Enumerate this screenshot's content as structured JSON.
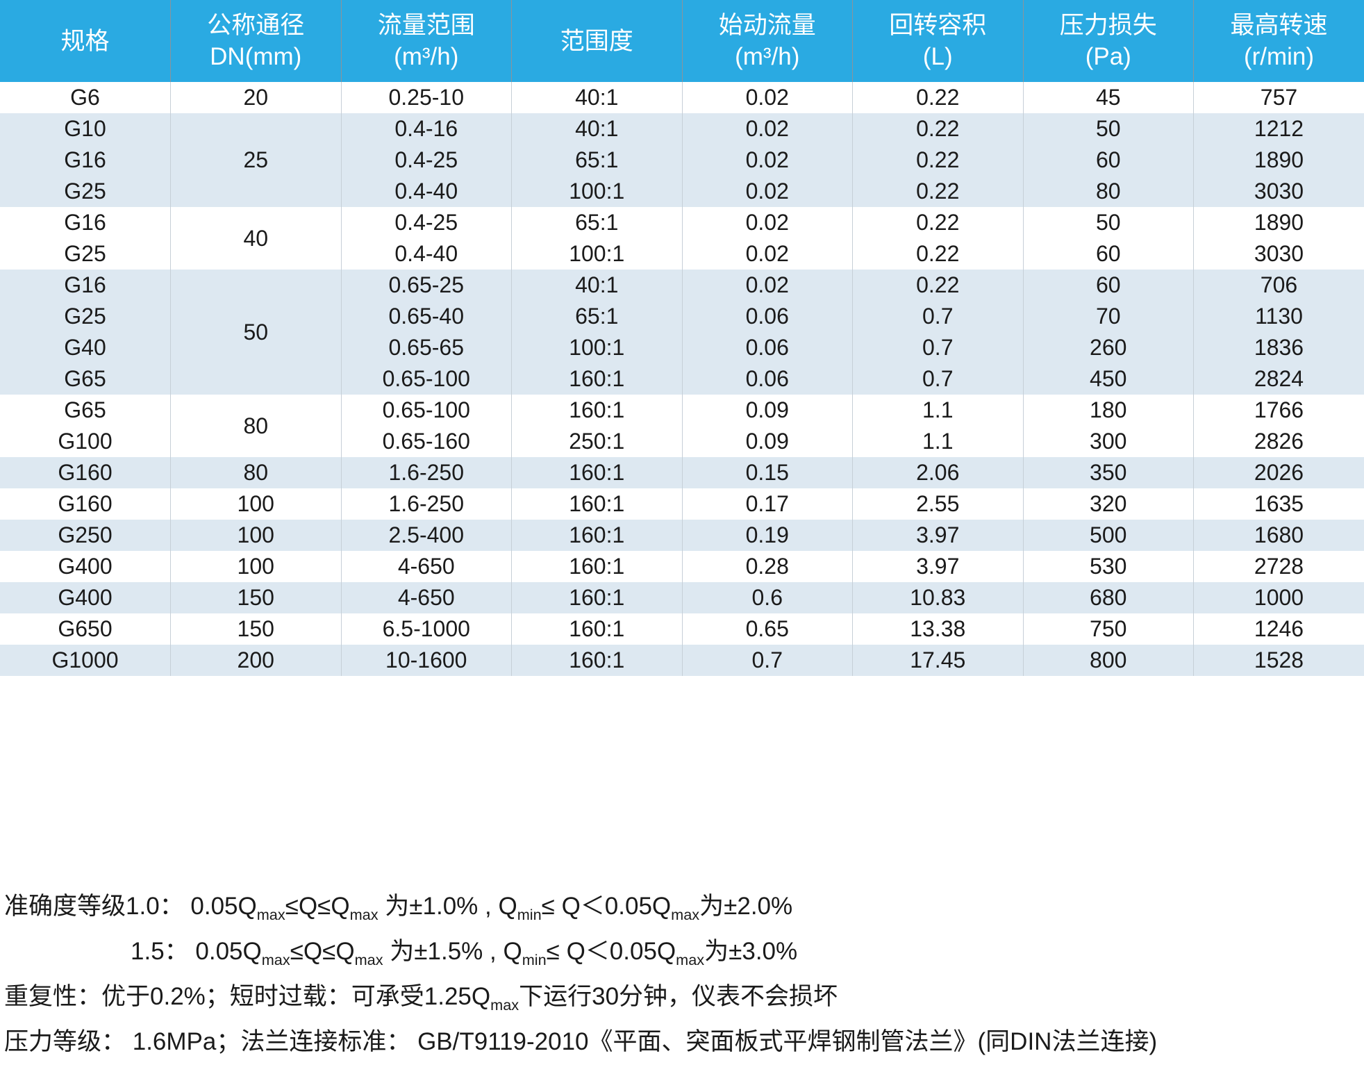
{
  "colors": {
    "header_bg": "#2aaae2",
    "header_text": "#ffffff",
    "stripe_bg": "#dde8f1",
    "body_text": "#1a1a1a"
  },
  "table": {
    "headers": [
      {
        "line1": "规格",
        "line2": ""
      },
      {
        "line1": "公称通径",
        "line2": "DN(mm)"
      },
      {
        "line1": "流量范围",
        "line2": "(m³/h)"
      },
      {
        "line1": "范围度",
        "line2": ""
      },
      {
        "line1": "始动流量",
        "line2": "(m³/h)"
      },
      {
        "line1": "回转容积",
        "line2": "(L)"
      },
      {
        "line1": "压力损失",
        "line2": "(Pa)"
      },
      {
        "line1": "最高转速",
        "line2": "(r/min)"
      }
    ],
    "groups": [
      {
        "dn": "20",
        "shade": false,
        "rows": [
          [
            "G6",
            "0.25-10",
            "40:1",
            "0.02",
            "0.22",
            "45",
            "757"
          ]
        ]
      },
      {
        "dn": "25",
        "shade": true,
        "rows": [
          [
            "G10",
            "0.4-16",
            "40:1",
            "0.02",
            "0.22",
            "50",
            "1212"
          ],
          [
            "G16",
            "0.4-25",
            "65:1",
            "0.02",
            "0.22",
            "60",
            "1890"
          ],
          [
            "G25",
            "0.4-40",
            "100:1",
            "0.02",
            "0.22",
            "80",
            "3030"
          ]
        ]
      },
      {
        "dn": "40",
        "shade": false,
        "rows": [
          [
            "G16",
            "0.4-25",
            "65:1",
            "0.02",
            "0.22",
            "50",
            "1890"
          ],
          [
            "G25",
            "0.4-40",
            "100:1",
            "0.02",
            "0.22",
            "60",
            "3030"
          ]
        ]
      },
      {
        "dn": "50",
        "shade": true,
        "rows": [
          [
            "G16",
            "0.65-25",
            "40:1",
            "0.02",
            "0.22",
            "60",
            "706"
          ],
          [
            "G25",
            "0.65-40",
            "65:1",
            "0.06",
            "0.7",
            "70",
            "1130"
          ],
          [
            "G40",
            "0.65-65",
            "100:1",
            "0.06",
            "0.7",
            "260",
            "1836"
          ],
          [
            "G65",
            "0.65-100",
            "160:1",
            "0.06",
            "0.7",
            "450",
            "2824"
          ]
        ]
      },
      {
        "dn": "80",
        "shade": false,
        "rows": [
          [
            "G65",
            "0.65-100",
            "160:1",
            "0.09",
            "1.1",
            "180",
            "1766"
          ],
          [
            "G100",
            "0.65-160",
            "250:1",
            "0.09",
            "1.1",
            "300",
            "2826"
          ]
        ]
      },
      {
        "dn": "80",
        "shade": true,
        "rows": [
          [
            "G160",
            "1.6-250",
            "160:1",
            "0.15",
            "2.06",
            "350",
            "2026"
          ]
        ]
      },
      {
        "dn": "100",
        "shade": false,
        "rows": [
          [
            "G160",
            "1.6-250",
            "160:1",
            "0.17",
            "2.55",
            "320",
            "1635"
          ]
        ]
      },
      {
        "dn": "100",
        "shade": true,
        "rows": [
          [
            "G250",
            "2.5-400",
            "160:1",
            "0.19",
            "3.97",
            "500",
            "1680"
          ]
        ]
      },
      {
        "dn": "100",
        "shade": false,
        "rows": [
          [
            "G400",
            "4-650",
            "160:1",
            "0.28",
            "3.97",
            "530",
            "2728"
          ]
        ]
      },
      {
        "dn": "150",
        "shade": true,
        "rows": [
          [
            "G400",
            "4-650",
            "160:1",
            "0.6",
            "10.83",
            "680",
            "1000"
          ]
        ]
      },
      {
        "dn": "150",
        "shade": false,
        "rows": [
          [
            "G650",
            "6.5-1000",
            "160:1",
            "0.65",
            "13.38",
            "750",
            "1246"
          ]
        ]
      },
      {
        "dn": "200",
        "shade": true,
        "rows": [
          [
            "G1000",
            "10-1600",
            "160:1",
            "0.7",
            "17.45",
            "800",
            "1528"
          ]
        ]
      }
    ]
  },
  "notes": {
    "lines": [
      {
        "indent": false,
        "segments": [
          {
            "text": "准确度等级1.0： 0.05Q"
          },
          {
            "sub": "max"
          },
          {
            "text": "≤Q≤Q"
          },
          {
            "sub": "max"
          },
          {
            "text": " 为±1.0% , Q"
          },
          {
            "sub": "min"
          },
          {
            "text": "≤ Q＜0.05Q"
          },
          {
            "sub": "max"
          },
          {
            "text": "为±2.0%"
          }
        ]
      },
      {
        "indent": true,
        "segments": [
          {
            "text": "1.5： 0.05Q"
          },
          {
            "sub": "max"
          },
          {
            "text": "≤Q≤Q"
          },
          {
            "sub": "max"
          },
          {
            "text": " 为±1.5% , Q"
          },
          {
            "sub": "min"
          },
          {
            "text": "≤ Q＜0.05Q"
          },
          {
            "sub": "max"
          },
          {
            "text": "为±3.0%"
          }
        ]
      },
      {
        "indent": false,
        "segments": [
          {
            "text": "重复性：优于0.2%；短时过载：可承受1.25Q"
          },
          {
            "sub": "max"
          },
          {
            "text": "下运行30分钟，仪表不会损坏"
          }
        ]
      },
      {
        "indent": false,
        "segments": [
          {
            "text": "压力等级： 1.6MPa；法兰连接标准： GB/T9119-2010《平面、突面板式平焊钢制管法兰》(同DIN法兰连接)"
          }
        ]
      }
    ]
  }
}
